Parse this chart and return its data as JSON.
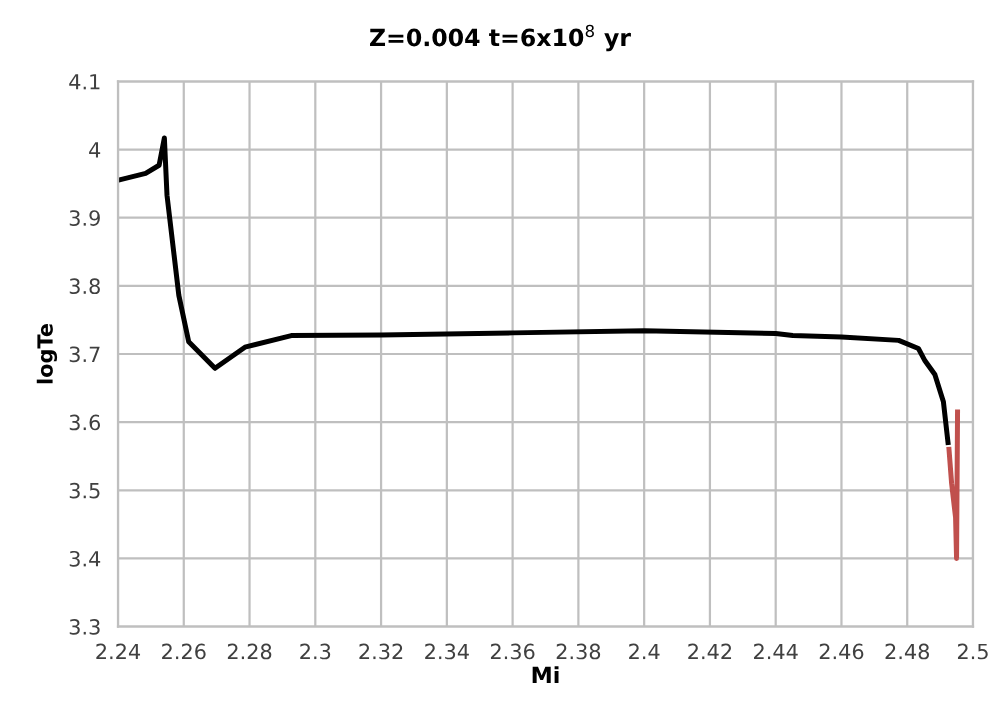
{
  "chart_data": {
    "type": "line",
    "title": "Z=0.004 t=6x10$^{8}$ yr",
    "xlabel": "Mi",
    "ylabel": "logTe",
    "series": [
      {
        "color": "#000000",
        "x": [
          2.24,
          2.2484,
          2.2525,
          2.2541,
          2.2549,
          2.2585,
          2.2615,
          2.2695,
          2.2786,
          2.2927,
          2.32,
          2.36,
          2.4,
          2.44,
          2.4452,
          2.46,
          2.4774,
          2.4834,
          2.4854,
          2.4884,
          2.491,
          2.4924
        ],
        "values": [
          3.955,
          3.965,
          3.977,
          4.017,
          3.933,
          3.786,
          3.718,
          3.679,
          3.71,
          3.727,
          3.728,
          3.731,
          3.734,
          3.73,
          3.727,
          3.725,
          3.72,
          3.708,
          3.69,
          3.67,
          3.63,
          3.57
        ]
      },
      {
        "color": "#c0504d",
        "x": [
          2.4927,
          2.4935,
          2.4947,
          2.495,
          2.4953
        ],
        "values": [
          3.56,
          3.51,
          3.46,
          3.4,
          3.615
        ]
      }
    ],
    "xlim": [
      2.24,
      2.5
    ],
    "ylim": [
      3.3,
      4.1
    ],
    "xticks": [
      2.24,
      2.26,
      2.28,
      2.3,
      2.32,
      2.34,
      2.36,
      2.38,
      2.4,
      2.42,
      2.44,
      2.46,
      2.48,
      2.5
    ],
    "yticks": [
      3.3,
      3.4,
      3.5,
      3.6,
      3.7,
      3.8,
      3.9,
      4,
      4.1
    ],
    "grid": true,
    "legend": false,
    "marker": "none",
    "line_style": "solid"
  }
}
